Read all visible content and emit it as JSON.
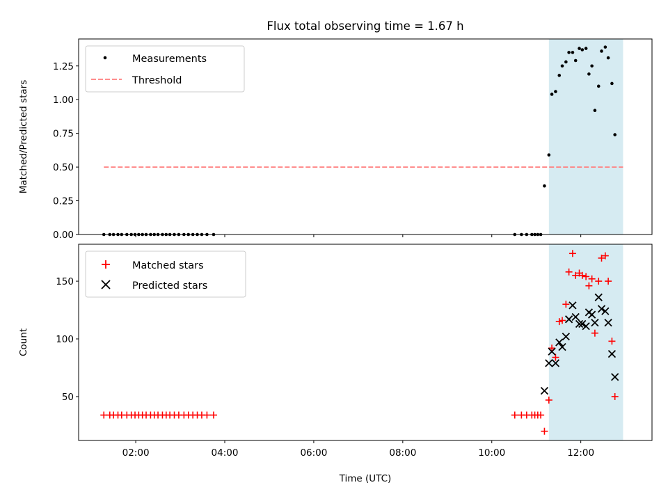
{
  "title": "Flux total observing time = 1.67 h",
  "colors": {
    "measurement": "#000000",
    "threshold": "#ff7f7f",
    "matched": "#ff0000",
    "predicted": "#000000",
    "highlight": "#add8e6"
  },
  "chart_data": [
    {
      "type": "scatter",
      "ylabel": "Matched/Predicted stars",
      "xlim": [
        "00:43",
        "13:36"
      ],
      "ylim": [
        0,
        1.45
      ],
      "yticks": [
        "0.00",
        "0.25",
        "0.50",
        "0.75",
        "1.00",
        "1.25"
      ],
      "grid": false,
      "legend_position": "top-left",
      "highlight_span": [
        "11:17",
        "12:57"
      ],
      "threshold": {
        "name": "Threshold",
        "y": 0.5,
        "x_start": "01:17",
        "x_end": "12:57"
      },
      "series": [
        {
          "name": "Measurements",
          "marker": "dot",
          "points": [
            [
              "01:17",
              0.0
            ],
            [
              "01:25",
              0.0
            ],
            [
              "01:30",
              0.0
            ],
            [
              "01:36",
              0.0
            ],
            [
              "01:41",
              0.0
            ],
            [
              "01:48",
              0.0
            ],
            [
              "01:54",
              0.0
            ],
            [
              "01:59",
              0.0
            ],
            [
              "02:04",
              0.0
            ],
            [
              "02:09",
              0.0
            ],
            [
              "02:14",
              0.0
            ],
            [
              "02:20",
              0.0
            ],
            [
              "02:25",
              0.0
            ],
            [
              "02:30",
              0.0
            ],
            [
              "02:36",
              0.0
            ],
            [
              "02:41",
              0.0
            ],
            [
              "02:46",
              0.0
            ],
            [
              "02:52",
              0.0
            ],
            [
              "02:58",
              0.0
            ],
            [
              "03:05",
              0.0
            ],
            [
              "03:11",
              0.0
            ],
            [
              "03:17",
              0.0
            ],
            [
              "03:23",
              0.0
            ],
            [
              "03:29",
              0.0
            ],
            [
              "03:36",
              0.0
            ],
            [
              "03:45",
              0.0
            ],
            [
              "10:31",
              0.0
            ],
            [
              "10:40",
              0.0
            ],
            [
              "10:47",
              0.0
            ],
            [
              "10:54",
              0.0
            ],
            [
              "10:58",
              0.0
            ],
            [
              "11:02",
              0.0
            ],
            [
              "11:06",
              0.0
            ],
            [
              "11:11",
              0.36
            ],
            [
              "11:17",
              0.59
            ],
            [
              "11:21",
              1.04
            ],
            [
              "11:26",
              1.06
            ],
            [
              "11:31",
              1.18
            ],
            [
              "11:35",
              1.25
            ],
            [
              "11:40",
              1.28
            ],
            [
              "11:44",
              1.35
            ],
            [
              "11:49",
              1.35
            ],
            [
              "11:53",
              1.29
            ],
            [
              "11:58",
              1.38
            ],
            [
              "12:02",
              1.37
            ],
            [
              "12:07",
              1.38
            ],
            [
              "12:11",
              1.19
            ],
            [
              "12:15",
              1.25
            ],
            [
              "12:19",
              0.92
            ],
            [
              "12:24",
              1.1
            ],
            [
              "12:28",
              1.36
            ],
            [
              "12:33",
              1.39
            ],
            [
              "12:37",
              1.31
            ],
            [
              "12:42",
              1.12
            ],
            [
              "12:46",
              0.74
            ]
          ]
        }
      ]
    },
    {
      "type": "scatter",
      "xlabel": "Time (UTC)",
      "ylabel": "Count",
      "xlim": [
        "00:43",
        "13:36"
      ],
      "ylim": [
        12,
        182
      ],
      "xticks": [
        "02:00",
        "04:00",
        "06:00",
        "08:00",
        "10:00",
        "12:00"
      ],
      "yticks": [
        "50",
        "100",
        "150"
      ],
      "grid": false,
      "legend_position": "top-left",
      "highlight_span": [
        "11:17",
        "12:57"
      ],
      "series": [
        {
          "name": "Matched stars",
          "marker": "plus",
          "points": [
            [
              "01:17",
              34
            ],
            [
              "01:25",
              34
            ],
            [
              "01:30",
              34
            ],
            [
              "01:36",
              34
            ],
            [
              "01:41",
              34
            ],
            [
              "01:48",
              34
            ],
            [
              "01:54",
              34
            ],
            [
              "01:59",
              34
            ],
            [
              "02:04",
              34
            ],
            [
              "02:09",
              34
            ],
            [
              "02:14",
              34
            ],
            [
              "02:20",
              34
            ],
            [
              "02:25",
              34
            ],
            [
              "02:30",
              34
            ],
            [
              "02:36",
              34
            ],
            [
              "02:41",
              34
            ],
            [
              "02:46",
              34
            ],
            [
              "02:52",
              34
            ],
            [
              "02:58",
              34
            ],
            [
              "03:05",
              34
            ],
            [
              "03:11",
              34
            ],
            [
              "03:17",
              34
            ],
            [
              "03:23",
              34
            ],
            [
              "03:29",
              34
            ],
            [
              "03:36",
              34
            ],
            [
              "03:45",
              34
            ],
            [
              "10:31",
              34
            ],
            [
              "10:40",
              34
            ],
            [
              "10:47",
              34
            ],
            [
              "10:54",
              34
            ],
            [
              "10:58",
              34
            ],
            [
              "11:02",
              34
            ],
            [
              "11:06",
              34
            ],
            [
              "11:11",
              20
            ],
            [
              "11:17",
              47
            ],
            [
              "11:21",
              92
            ],
            [
              "11:26",
              84
            ],
            [
              "11:31",
              115
            ],
            [
              "11:35",
              116
            ],
            [
              "11:40",
              130
            ],
            [
              "11:44",
              158
            ],
            [
              "11:49",
              174
            ],
            [
              "11:53",
              155
            ],
            [
              "11:58",
              157
            ],
            [
              "12:02",
              155
            ],
            [
              "12:07",
              154
            ],
            [
              "12:11",
              146
            ],
            [
              "12:15",
              152
            ],
            [
              "12:19",
              105
            ],
            [
              "12:24",
              150
            ],
            [
              "12:28",
              170
            ],
            [
              "12:33",
              172
            ],
            [
              "12:37",
              150
            ],
            [
              "12:42",
              98
            ],
            [
              "12:46",
              50
            ]
          ]
        },
        {
          "name": "Predicted stars",
          "marker": "x",
          "points": [
            [
              "11:11",
              55
            ],
            [
              "11:17",
              79
            ],
            [
              "11:21",
              89
            ],
            [
              "11:26",
              79
            ],
            [
              "11:31",
              97
            ],
            [
              "11:35",
              93
            ],
            [
              "11:40",
              102
            ],
            [
              "11:44",
              117
            ],
            [
              "11:49",
              129
            ],
            [
              "11:53",
              119
            ],
            [
              "11:58",
              113
            ],
            [
              "12:02",
              113
            ],
            [
              "12:07",
              111
            ],
            [
              "12:11",
              123
            ],
            [
              "12:15",
              121
            ],
            [
              "12:19",
              114
            ],
            [
              "12:24",
              136
            ],
            [
              "12:28",
              126
            ],
            [
              "12:33",
              124
            ],
            [
              "12:37",
              114
            ],
            [
              "12:42",
              87
            ],
            [
              "12:46",
              67
            ]
          ]
        }
      ]
    }
  ]
}
